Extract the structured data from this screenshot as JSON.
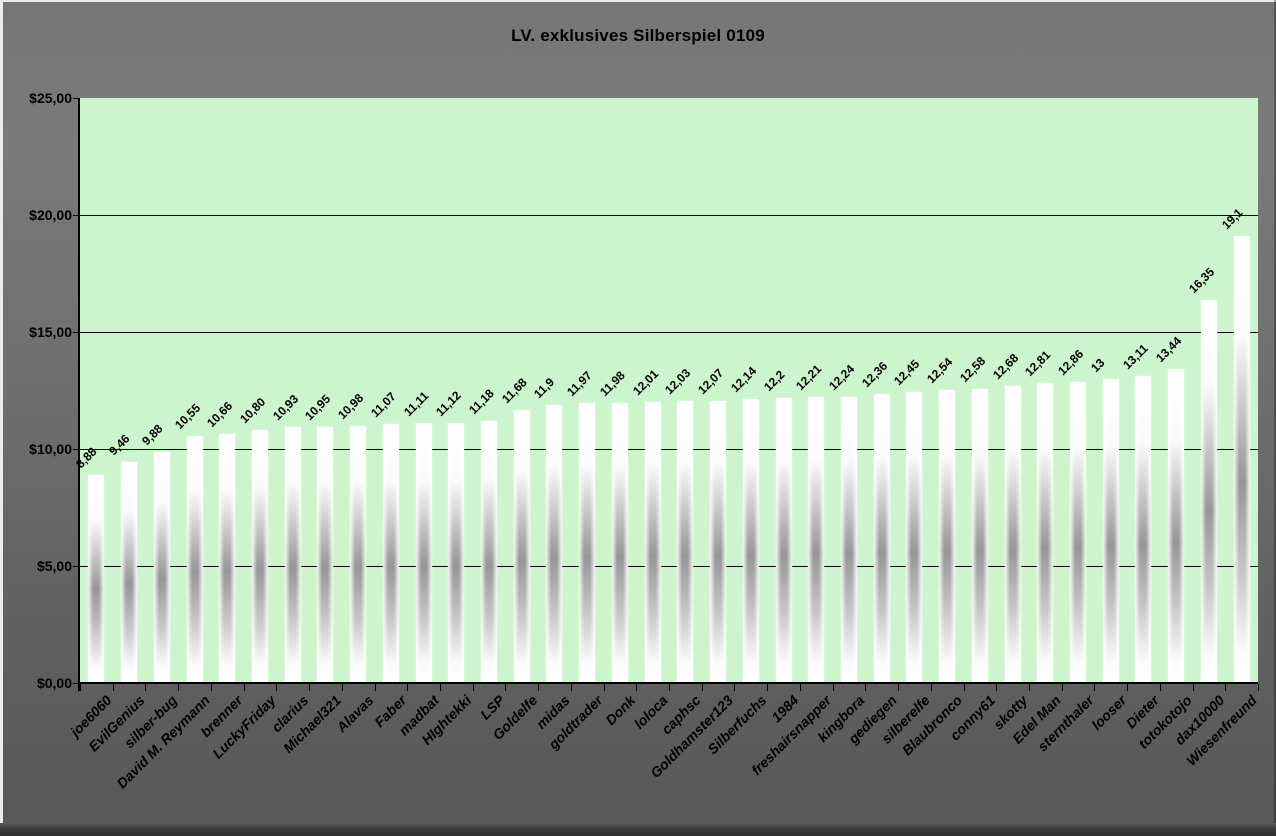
{
  "chart_data": {
    "type": "bar",
    "title": "LV. exklusives Silberspiel 0109",
    "categories": [
      "joe6060",
      "EvilGenius",
      "silber-bug",
      "David M. Reymann",
      "brenner",
      "LuckyFriday",
      "clarius",
      "Michael321",
      "Alavas",
      "Faber",
      "madbat",
      "HIghtekki",
      "LSP",
      "Goldelfe",
      "midas",
      "goldtrader",
      "Donk",
      "loloca",
      "caphsc",
      "Goldhamster123",
      "Silberfuchs",
      "1984",
      "freshairsnapper",
      "kingbora",
      "gediegen",
      "silberelfe",
      "Blaubronco",
      "conny61",
      "skotty",
      "Edel Man",
      "sternthaler",
      "looser",
      "Dieter",
      "totokotojo",
      "dax10000",
      "Wiesenfreund"
    ],
    "values": [
      8.88,
      9.46,
      9.88,
      10.55,
      10.66,
      10.8,
      10.93,
      10.95,
      10.98,
      11.07,
      11.11,
      11.12,
      11.18,
      11.68,
      11.9,
      11.97,
      11.98,
      12.01,
      12.03,
      12.07,
      12.14,
      12.2,
      12.21,
      12.24,
      12.36,
      12.45,
      12.54,
      12.58,
      12.68,
      12.81,
      12.86,
      13,
      13.11,
      13.44,
      16.35,
      19.1
    ],
    "value_labels": [
      "8,88",
      "9,46",
      "9,88",
      "10,55",
      "10,66",
      "10,80",
      "10,93",
      "10,95",
      "10,98",
      "11,07",
      "11,11",
      "11,12",
      "11,18",
      "11,68",
      "11,9",
      "11,97",
      "11,98",
      "12,01",
      "12,03",
      "12,07",
      "12,14",
      "12,2",
      "12,21",
      "12,24",
      "12,36",
      "12,45",
      "12,54",
      "12,58",
      "12,68",
      "12,81",
      "12,86",
      "13",
      "13,11",
      "13,44",
      "16,35",
      "19,1"
    ],
    "y_tick_labels": [
      "$25,00",
      "$20,00",
      "$15,00",
      "$10,00",
      "$5,00",
      "$0,00"
    ],
    "y_tick_values": [
      25,
      20,
      15,
      10,
      5,
      0
    ],
    "ylim": [
      0,
      25
    ],
    "xlabel": "",
    "ylabel": "",
    "grid": true,
    "legend": false,
    "colors": {
      "plot_bg": "#cdf5cd",
      "bar_core": "#969696",
      "bar_highlight": "#ffffff",
      "grid_line": "#000000",
      "axis_line": "#000000",
      "text": "#000000",
      "window_bg_top": "#7a7a7a",
      "window_bg_bottom": "#575757",
      "bottom_edge": "#2d2d2d",
      "border_light": "#ececec"
    }
  }
}
